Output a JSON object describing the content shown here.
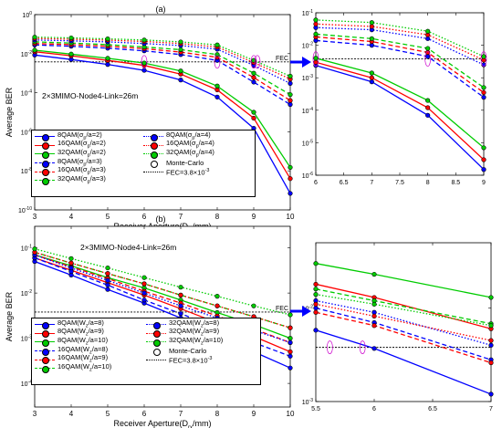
{
  "figure": {
    "label_a": "(a)",
    "label_b": "(b)"
  },
  "chart_data": [
    {
      "id": "a-main",
      "type": "line",
      "panel": "(a)",
      "scale_y": "log",
      "xlabel": "Receiver Aperture(D",
      "xlabel_sub": "rx",
      "xlabel_tail": "/mm)",
      "ylabel": "Average BER",
      "annotation": "2×3MIMO-Node4-Link=26m",
      "xlim": [
        3,
        10
      ],
      "ylim": [
        1e-10,
        1
      ],
      "xticks": [
        "3",
        "4",
        "5",
        "6",
        "7",
        "8",
        "9",
        "10"
      ],
      "yticks": [
        {
          "exp": "-10",
          "v": 1e-10
        },
        {
          "exp": "-8",
          "v": 1e-08
        },
        {
          "exp": "-6",
          "v": 1e-06
        },
        {
          "exp": "-4",
          "v": 0.0001
        },
        {
          "exp": "-2",
          "v": 0.01
        },
        {
          "exp": "0",
          "v": 1
        }
      ],
      "fec": 0.0038,
      "fec_label": "FEC",
      "x": [
        3,
        4,
        5,
        6,
        7,
        8,
        9,
        10
      ],
      "series": [
        {
          "name": "8QAM(σ_p/a=2)",
          "color": "#0000ff",
          "dash": "solid",
          "values": [
            0.0085,
            0.005,
            0.0028,
            0.0014,
            0.00045,
            6e-05,
            1.5e-06,
            7e-10
          ]
        },
        {
          "name": "16QAM(σ_p/a=2)",
          "color": "#ff0000",
          "dash": "solid",
          "values": [
            0.0125,
            0.0078,
            0.0045,
            0.0025,
            0.0009,
            0.00014,
            5e-06,
            4e-09
          ]
        },
        {
          "name": "32QAM(σ_p/a=2)",
          "color": "#00cc00",
          "dash": "solid",
          "values": [
            0.015,
            0.0095,
            0.0058,
            0.0033,
            0.0013,
            0.00022,
            1e-05,
            1.5e-08
          ]
        },
        {
          "name": "8QAM(σ_p/a=3)",
          "color": "#0000ff",
          "dash": "dash",
          "values": [
            0.028,
            0.024,
            0.019,
            0.014,
            0.009,
            0.0045,
            0.00035,
            2.5e-05
          ]
        },
        {
          "name": "16QAM(σ_p/a=3)",
          "color": "#ff0000",
          "dash": "dash",
          "values": [
            0.033,
            0.029,
            0.024,
            0.018,
            0.012,
            0.0065,
            0.0006,
            4e-05
          ]
        },
        {
          "name": "32QAM(σ_p/a=3)",
          "color": "#00cc00",
          "dash": "dash",
          "values": [
            0.04,
            0.035,
            0.029,
            0.022,
            0.016,
            0.009,
            0.001,
            8e-05
          ]
        },
        {
          "name": "8QAM(σ_p/a=4)",
          "color": "#0000ff",
          "dash": "dot",
          "values": [
            0.05,
            0.045,
            0.04,
            0.033,
            0.026,
            0.017,
            0.0025,
            0.0003
          ]
        },
        {
          "name": "16QAM(σ_p/a=4)",
          "color": "#ff0000",
          "dash": "dot",
          "values": [
            0.06,
            0.055,
            0.049,
            0.042,
            0.033,
            0.022,
            0.0035,
            0.0005
          ]
        },
        {
          "name": "32QAM(σ_p/a=4)",
          "color": "#00cc00",
          "dash": "dot",
          "values": [
            0.07,
            0.064,
            0.057,
            0.05,
            0.04,
            0.028,
            0.0045,
            0.0007
          ]
        }
      ],
      "legend": {
        "items": [
          {
            "label": "8QAM(σ",
            "sub": "p",
            "tail": "/a=2)",
            "color": "#0000ff",
            "dash": "solid",
            "marker": "#0000ff"
          },
          {
            "label": "8QAM(σ",
            "sub": "p",
            "tail": "/a=4)",
            "color": "#0000ff",
            "dash": "dot",
            "marker": "#0000ff"
          },
          {
            "label": "16QAM(σ",
            "sub": "p",
            "tail": "/a=2)",
            "color": "#ff0000",
            "dash": "solid",
            "marker": "#ff0000"
          },
          {
            "label": "16QAM(σ",
            "sub": "p",
            "tail": "/a=4)",
            "color": "#ff0000",
            "dash": "dot",
            "marker": "#ff0000"
          },
          {
            "label": "32QAM(σ",
            "sub": "p",
            "tail": "/a=2)",
            "color": "#00cc00",
            "dash": "solid",
            "marker": "#00cc00"
          },
          {
            "label": "32QAM(σ",
            "sub": "p",
            "tail": "/a=4)",
            "color": "#00cc00",
            "dash": "dot",
            "marker": "#00cc00"
          },
          {
            "label": "8QAM(σ",
            "sub": "p",
            "tail": "/a=3)",
            "color": "#0000ff",
            "dash": "dash",
            "marker": "#0000ff"
          },
          {
            "label": "Monte-Carlo",
            "sub": "",
            "tail": "",
            "color": "none",
            "dash": "none",
            "marker": "none"
          },
          {
            "label": "16QAM(σ",
            "sub": "p",
            "tail": "/a=3)",
            "color": "#ff0000",
            "dash": "dash",
            "marker": "#ff0000"
          },
          {
            "label": "FEC=3.8×10",
            "sub": "",
            "tail": "",
            "sup": "-3",
            "color": "#000000",
            "dash": "dot",
            "marker": ""
          },
          {
            "label": "32QAM(σ",
            "sub": "p",
            "tail": "/a=3)",
            "color": "#00cc00",
            "dash": "dash",
            "marker": "#00cc00"
          }
        ]
      }
    },
    {
      "id": "a-zoom",
      "type": "line",
      "scale_y": "log",
      "xlim": [
        6,
        9
      ],
      "ylim": [
        1e-06,
        0.1
      ],
      "xticks": [
        "6",
        "6.5",
        "7",
        "7.5",
        "8",
        "8.5",
        "9"
      ],
      "yticks": [
        {
          "exp": "-6",
          "v": 1e-06
        },
        {
          "exp": "-5",
          "v": 1e-05
        },
        {
          "exp": "-4",
          "v": 0.0001
        },
        {
          "exp": "-3",
          "v": 0.001
        },
        {
          "exp": "-2",
          "v": 0.01
        },
        {
          "exp": "-1",
          "v": 0.1
        }
      ],
      "fec": 0.0038,
      "x": [
        6,
        7,
        8,
        9
      ],
      "series": [
        {
          "name": "8QAM(σ_p/a=2)",
          "color": "#0000ff",
          "dash": "solid",
          "values": [
            0.0024,
            0.00075,
            7e-05,
            1.5e-06
          ]
        },
        {
          "name": "16QAM(σ_p/a=2)",
          "color": "#ff0000",
          "dash": "solid",
          "values": [
            0.003,
            0.001,
            0.00012,
            3e-06
          ]
        },
        {
          "name": "32QAM(σ_p/a=2)",
          "color": "#00cc00",
          "dash": "solid",
          "values": [
            0.004,
            0.0014,
            0.0002,
            7e-06
          ]
        },
        {
          "name": "8QAM(σ_p/a=3)",
          "color": "#0000ff",
          "dash": "dash",
          "values": [
            0.014,
            0.01,
            0.0045,
            0.00025
          ]
        },
        {
          "name": "16QAM(σ_p/a=3)",
          "color": "#ff0000",
          "dash": "dash",
          "values": [
            0.018,
            0.013,
            0.006,
            0.00035
          ]
        },
        {
          "name": "32QAM(σ_p/a=3)",
          "color": "#00cc00",
          "dash": "dash",
          "values": [
            0.022,
            0.016,
            0.008,
            0.0005
          ]
        },
        {
          "name": "8QAM(σ_p/a=4)",
          "color": "#0000ff",
          "dash": "dot",
          "values": [
            0.035,
            0.03,
            0.016,
            0.0025
          ]
        },
        {
          "name": "16QAM(σ_p/a=4)",
          "color": "#ff0000",
          "dash": "dot",
          "values": [
            0.045,
            0.038,
            0.021,
            0.0035
          ]
        },
        {
          "name": "32QAM(σ_p/a=4)",
          "color": "#00cc00",
          "dash": "dot",
          "values": [
            0.06,
            0.05,
            0.027,
            0.0045
          ]
        }
      ]
    },
    {
      "id": "b-main",
      "type": "line",
      "panel": "(b)",
      "scale_y": "log",
      "xlabel": "Receiver Aperture(D",
      "xlabel_sub": "rx",
      "xlabel_tail": "/mm)",
      "ylabel": "Average BER",
      "annotation": "2×3MIMO-Node4-Link=26m",
      "xlim": [
        3,
        10
      ],
      "ylim": [
        3e-05,
        0.3
      ],
      "xticks": [
        "3",
        "4",
        "5",
        "6",
        "7",
        "8",
        "9",
        "10"
      ],
      "yticks": [
        {
          "exp": "-4",
          "v": 0.0001
        },
        {
          "exp": "-3",
          "v": 0.001
        },
        {
          "exp": "-2",
          "v": 0.01
        },
        {
          "exp": "-1",
          "v": 0.1
        }
      ],
      "fec": 0.0038,
      "fec_label": "FEC",
      "x": [
        3,
        4,
        5,
        6,
        7,
        8,
        9,
        10
      ],
      "series": [
        {
          "name": "8QAM(W_z/a=8)",
          "color": "#0000ff",
          "dash": "solid",
          "values": [
            0.05,
            0.025,
            0.012,
            0.006,
            0.0028,
            0.0012,
            0.0005,
            0.00022
          ]
        },
        {
          "name": "8QAM(W_z/a=9)",
          "color": "#ff0000",
          "dash": "solid",
          "values": [
            0.06,
            0.032,
            0.017,
            0.009,
            0.0045,
            0.0022,
            0.0011,
            0.0005
          ]
        },
        {
          "name": "8QAM(W_z/a=10)",
          "color": "#00cc00",
          "dash": "solid",
          "values": [
            0.07,
            0.04,
            0.022,
            0.013,
            0.007,
            0.0037,
            0.002,
            0.001
          ]
        },
        {
          "name": "16QAM(W_z/a=8)",
          "color": "#0000ff",
          "dash": "dash",
          "values": [
            0.06,
            0.03,
            0.015,
            0.007,
            0.0035,
            0.0017,
            0.0008,
            0.0004
          ]
        },
        {
          "name": "16QAM(W_z/a=9)",
          "color": "#ff0000",
          "dash": "dash",
          "values": [
            0.07,
            0.038,
            0.021,
            0.011,
            0.006,
            0.0031,
            0.0016,
            0.0008
          ]
        },
        {
          "name": "16QAM(W_z/a=10)",
          "color": "#00cc00",
          "dash": "dash",
          "values": [
            0.08,
            0.046,
            0.027,
            0.016,
            0.009,
            0.0052,
            0.003,
            0.0017
          ]
        },
        {
          "name": "32QAM(W_z/a=8)",
          "color": "#0000ff",
          "dash": "dot",
          "values": [
            0.07,
            0.036,
            0.019,
            0.01,
            0.0052,
            0.0028,
            0.0015,
            0.0008
          ]
        },
        {
          "name": "32QAM(W_z/a=9)",
          "color": "#ff0000",
          "dash": "dot",
          "values": [
            0.08,
            0.046,
            0.027,
            0.016,
            0.009,
            0.0052,
            0.003,
            0.0017
          ]
        },
        {
          "name": "32QAM(W_z/a=10)",
          "color": "#00cc00",
          "dash": "dot",
          "values": [
            0.095,
            0.058,
            0.036,
            0.022,
            0.0135,
            0.0085,
            0.0052,
            0.0033
          ]
        }
      ],
      "legend": {
        "items": [
          {
            "label": "8QAM(W",
            "sub": "z",
            "tail": "/a=8)",
            "color": "#0000ff",
            "dash": "solid",
            "marker": "#0000ff"
          },
          {
            "label": "32QAM(W",
            "sub": "z",
            "tail": "/a=8)",
            "color": "#0000ff",
            "dash": "dot",
            "marker": "#0000ff"
          },
          {
            "label": "8QAM(W",
            "sub": "z",
            "tail": "/a=9)",
            "color": "#ff0000",
            "dash": "solid",
            "marker": "#ff0000"
          },
          {
            "label": "32QAM(W",
            "sub": "z",
            "tail": "/a=9)",
            "color": "#ff0000",
            "dash": "dot",
            "marker": "#ff0000"
          },
          {
            "label": "8QAM(W",
            "sub": "z",
            "tail": "/a=10)",
            "color": "#00cc00",
            "dash": "solid",
            "marker": "#00cc00"
          },
          {
            "label": "32QAM(W",
            "sub": "z",
            "tail": "/a=10)",
            "color": "#00cc00",
            "dash": "dot",
            "marker": "#00cc00"
          },
          {
            "label": "16QAM(W",
            "sub": "z",
            "tail": "/a=8)",
            "color": "#0000ff",
            "dash": "dash",
            "marker": "#0000ff"
          },
          {
            "label": "Monte-Carlo",
            "sub": "",
            "tail": "",
            "color": "none",
            "dash": "none",
            "marker": "none"
          },
          {
            "label": "16QAM(W",
            "sub": "z",
            "tail": "/a=9)",
            "color": "#ff0000",
            "dash": "dash",
            "marker": "#ff0000"
          },
          {
            "label": "FEC=3.8×10",
            "sub": "",
            "tail": "",
            "sup": "-3",
            "color": "#000000",
            "dash": "dot",
            "marker": ""
          },
          {
            "label": "16QAM(W",
            "sub": "z",
            "tail": "/a=10)",
            "color": "#00cc00",
            "dash": "dash",
            "marker": "#00cc00"
          }
        ]
      }
    },
    {
      "id": "b-zoom",
      "type": "line",
      "scale_y": "log",
      "xlim": [
        5.5,
        7
      ],
      "ylim": [
        0.001,
        0.05
      ],
      "xticks": [
        "5.5",
        "6",
        "6.5",
        "7"
      ],
      "yticks": [
        {
          "exp": "-3",
          "v": 0.001
        },
        {
          "exp": "-2",
          "v": 0.01
        }
      ],
      "fec": 0.0038,
      "x": [
        5.5,
        6,
        7
      ],
      "series": [
        {
          "name": "8QAM(W_z/a=8)",
          "color": "#0000ff",
          "dash": "solid",
          "values": [
            0.0058,
            0.0037,
            0.0012
          ]
        },
        {
          "name": "8QAM(W_z/a=9)",
          "color": "#ff0000",
          "dash": "solid",
          "values": [
            0.018,
            0.013,
            0.006
          ]
        },
        {
          "name": "8QAM(W_z/a=10)",
          "color": "#00cc00",
          "dash": "solid",
          "values": [
            0.03,
            0.023,
            0.013
          ]
        },
        {
          "name": "16QAM(W_z/a=8)",
          "color": "#0000ff",
          "dash": "dash",
          "values": [
            0.01,
            0.007,
            0.0028
          ]
        },
        {
          "name": "16QAM(W_z/a=9)",
          "color": "#ff0000",
          "dash": "dash",
          "values": [
            0.009,
            0.0065,
            0.0026
          ]
        },
        {
          "name": "16QAM(W_z/a=10)",
          "color": "#00cc00",
          "dash": "dash",
          "values": [
            0.016,
            0.012,
            0.0068
          ]
        },
        {
          "name": "32QAM(W_z/a=8)",
          "color": "#0000ff",
          "dash": "dot",
          "values": [
            0.012,
            0.009,
            0.004
          ]
        },
        {
          "name": "32QAM(W_z/a=9)",
          "color": "#ff0000",
          "dash": "dot",
          "values": [
            0.011,
            0.0082,
            0.0045
          ]
        },
        {
          "name": "32QAM(W_z/a=10)",
          "color": "#00cc00",
          "dash": "dot",
          "values": [
            0.014,
            0.011,
            0.0065
          ]
        }
      ]
    }
  ]
}
